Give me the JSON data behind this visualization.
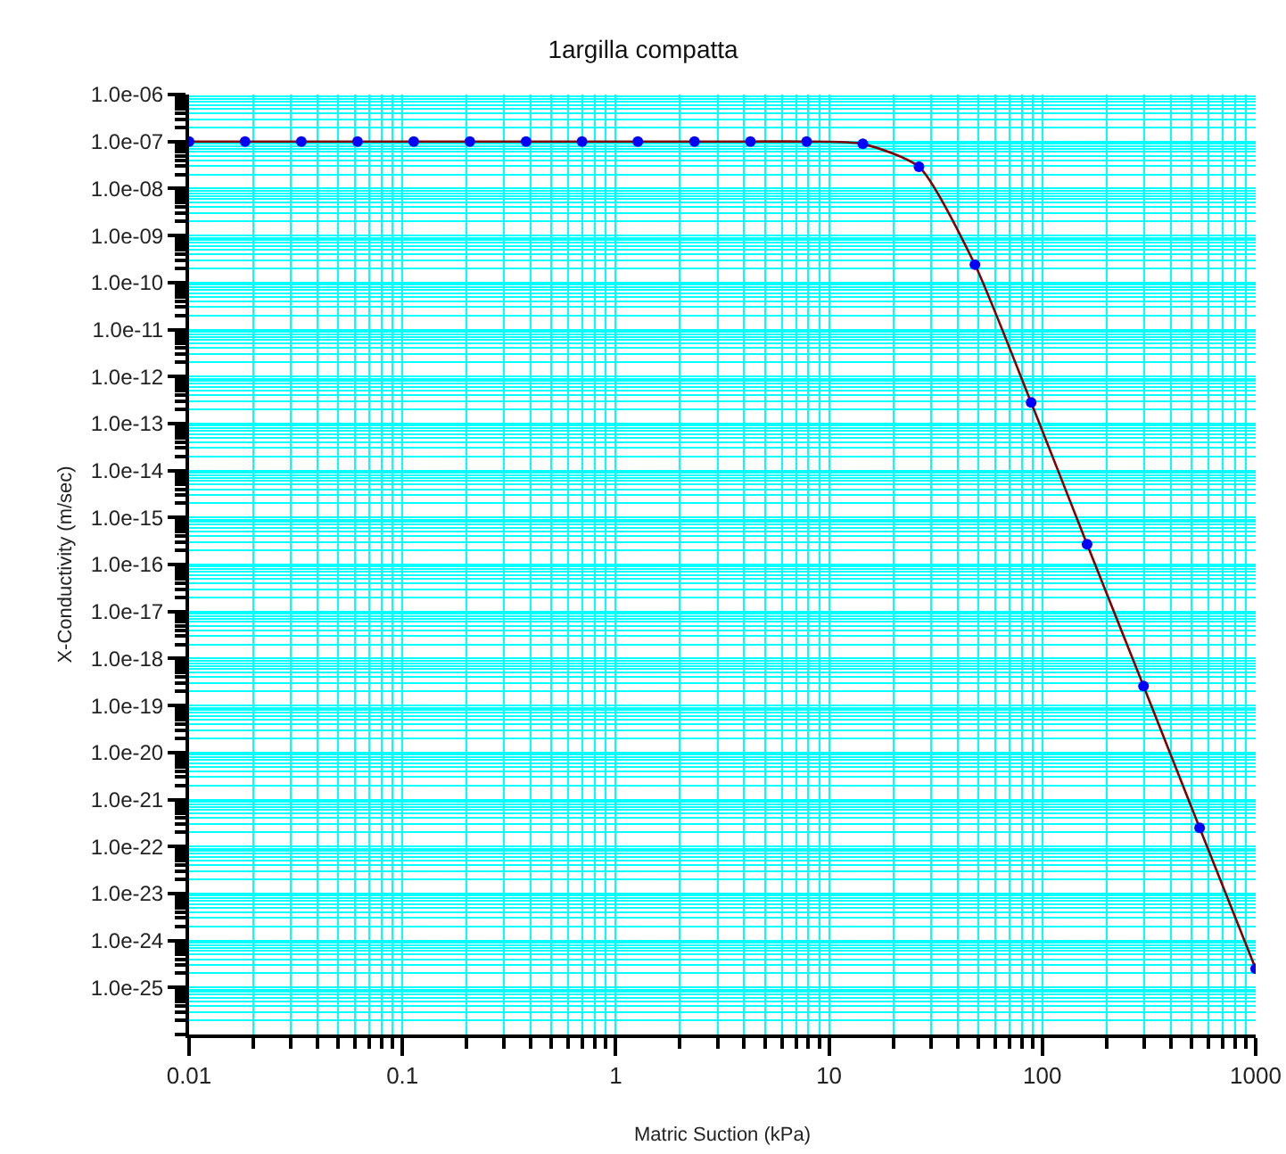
{
  "chart_data": {
    "type": "scatter",
    "title": "1argilla compatta",
    "xlabel": "Matric Suction (kPa)",
    "ylabel": "X-Conductivity (m/sec)",
    "log": "xy",
    "grid": true,
    "xlim": [
      0.01,
      1000
    ],
    "xticks": [
      0.01,
      0.1,
      1,
      10,
      100,
      1000
    ],
    "ylim": [
      1e-26,
      1e-06
    ],
    "yticks": [
      {
        "value": 1e-06,
        "label": "1.0e-06"
      },
      {
        "value": 1e-07,
        "label": "1.0e-07"
      },
      {
        "value": 1e-08,
        "label": "1.0e-08"
      },
      {
        "value": 1e-09,
        "label": "1.0e-09"
      },
      {
        "value": 1e-10,
        "label": "1.0e-10"
      },
      {
        "value": 1e-11,
        "label": "1.0e-11"
      },
      {
        "value": 1e-12,
        "label": "1.0e-12"
      },
      {
        "value": 1e-13,
        "label": "1.0e-13"
      },
      {
        "value": 1e-14,
        "label": "1.0e-14"
      },
      {
        "value": 1e-15,
        "label": "1.0e-15"
      },
      {
        "value": 1e-16,
        "label": "1.0e-16"
      },
      {
        "value": 1e-17,
        "label": "1.0e-17"
      },
      {
        "value": 1e-18,
        "label": "1.0e-18"
      },
      {
        "value": 1e-19,
        "label": "1.0e-19"
      },
      {
        "value": 1e-20,
        "label": "1.0e-20"
      },
      {
        "value": 1e-21,
        "label": "1.0e-21"
      },
      {
        "value": 1e-22,
        "label": "1.0e-22"
      },
      {
        "value": 1e-23,
        "label": "1.0e-23"
      },
      {
        "value": 1e-24,
        "label": "1.0e-24"
      },
      {
        "value": 1e-25,
        "label": "1.0e-25"
      }
    ],
    "x": [
      0.01,
      0.0183,
      0.0336,
      0.0616,
      0.113,
      0.207,
      0.38,
      0.695,
      1.27,
      2.34,
      4.28,
      7.85,
      14.4,
      26.4,
      48.3,
      88.6,
      162,
      298,
      546,
      1000
    ],
    "series": [
      {
        "type": "line",
        "color": "#800000",
        "line_style": "solid",
        "marker": "none",
        "values": [
          1e-07,
          1e-07,
          1e-07,
          1e-07,
          1e-07,
          1e-07,
          1e-07,
          1e-07,
          1e-07,
          1e-07,
          1e-07,
          1e-07,
          8.9e-08,
          2.9e-08,
          2.4e-10,
          2.8e-13,
          2.7e-16,
          2.6e-19,
          2.5e-22,
          2.5e-25
        ]
      },
      {
        "color": "#0000ff",
        "marker": "circle",
        "values": [
          1e-07,
          1e-07,
          1e-07,
          1e-07,
          1e-07,
          1e-07,
          1e-07,
          1e-07,
          1e-07,
          1e-07,
          1e-07,
          1e-07,
          8.9e-08,
          2.9e-08,
          2.4e-10,
          2.8e-13,
          2.7e-16,
          2.6e-19,
          2.5e-22,
          2.5e-25
        ]
      }
    ]
  }
}
